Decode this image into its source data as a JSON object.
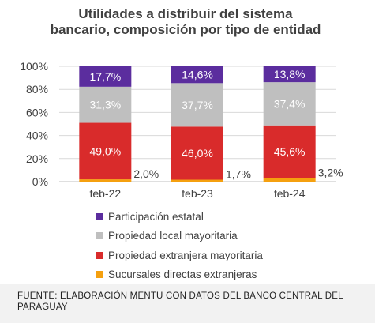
{
  "chart_data": {
    "type": "bar",
    "stacked": "percent",
    "title": "Utilidades a distribuir del sistema bancario, composición por tipo de entidad",
    "categories": [
      "feb-22",
      "feb-23",
      "feb-24"
    ],
    "series": [
      {
        "name": "Sucursales directas extranjeras",
        "values": [
          2.0,
          1.7,
          3.2
        ],
        "labels": [
          "2,0%",
          "1,7%",
          "3,2%"
        ],
        "color": "#f5a00f",
        "label_color": "#404040",
        "label_position": "outside-right"
      },
      {
        "name": "Propiedad extranjera mayoritaria",
        "values": [
          49.0,
          46.0,
          45.6
        ],
        "labels": [
          "49,0%",
          "46,0%",
          "45,6%"
        ],
        "color": "#d92b2b",
        "label_color": "#ffffff",
        "label_position": "inside"
      },
      {
        "name": "Propiedad local mayoritaria",
        "values": [
          31.3,
          37.7,
          37.4
        ],
        "labels": [
          "31,3%",
          "37,7%",
          "37,4%"
        ],
        "color": "#bfbfbf",
        "label_color": "#ffffff",
        "label_position": "inside"
      },
      {
        "name": "Participación estatal",
        "values": [
          17.7,
          14.6,
          13.8
        ],
        "labels": [
          "17,7%",
          "14,6%",
          "13,8%"
        ],
        "color": "#5b2d9e",
        "label_color": "#ffffff",
        "label_position": "inside"
      }
    ],
    "yaxis": {
      "ticks": [
        0,
        20,
        40,
        60,
        80,
        100
      ],
      "tick_labels": [
        "0%",
        "20%",
        "40%",
        "60%",
        "80%",
        "100%"
      ],
      "ylim": [
        0,
        100
      ]
    },
    "grid": true,
    "legend_order": [
      3,
      2,
      1,
      0
    ],
    "legend_position": "bottom"
  },
  "source": "Fuente: Elaboración MENTU con datos del Banco Central del Paraguay"
}
